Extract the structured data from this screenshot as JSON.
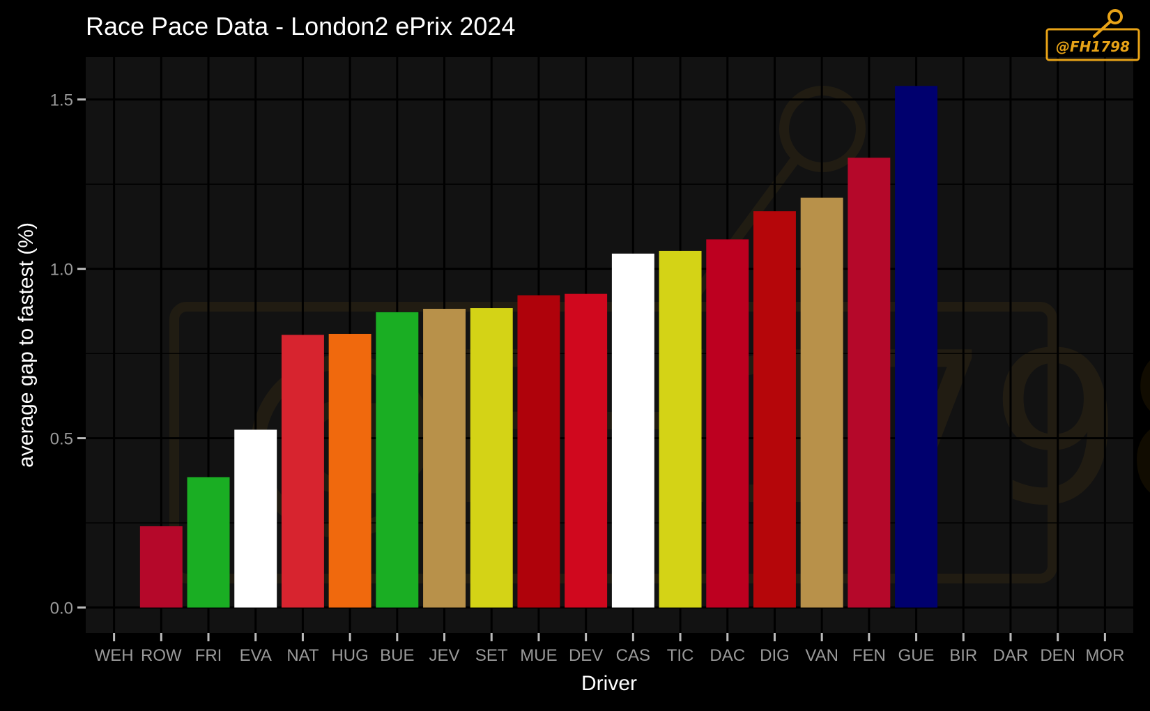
{
  "chart_data": {
    "type": "bar",
    "title": "Race Pace Data - London2 ePrix 2024",
    "xlabel": "Driver",
    "ylabel": "average gap to fastest (%)",
    "ylim": [
      -0.075,
      1.625
    ],
    "yticks": [
      0.0,
      0.5,
      1.0,
      1.5
    ],
    "ytick_labels": [
      "0.0",
      "0.5",
      "1.0",
      "1.5"
    ],
    "grid": true,
    "legend": "none",
    "categories": [
      "WEH",
      "ROW",
      "FRI",
      "EVA",
      "NAT",
      "HUG",
      "BUE",
      "JEV",
      "SET",
      "MUE",
      "DEV",
      "CAS",
      "TIC",
      "DAC",
      "DIG",
      "VAN",
      "FEN",
      "GUE",
      "BIR",
      "DAR",
      "DEN",
      "MOR"
    ],
    "values": [
      0.0,
      0.24,
      0.385,
      0.525,
      0.805,
      0.808,
      0.872,
      0.882,
      0.884,
      0.922,
      0.926,
      1.045,
      1.053,
      1.087,
      1.17,
      1.21,
      1.328,
      1.54,
      null,
      null,
      null,
      null
    ],
    "colors": [
      "#000000",
      "#B5082A",
      "#1AAE23",
      "#FFFFFF",
      "#D7242F",
      "#F0690D",
      "#1AAE23",
      "#B8914A",
      "#D4D316",
      "#AF020B",
      "#D0081E",
      "#FFFFFF",
      "#D4D316",
      "#BD0020",
      "#B5060A",
      "#B8914A",
      "#B5082A",
      "#00006E",
      null,
      null,
      null,
      null
    ]
  },
  "watermark": {
    "text": "@FH1798",
    "color": "#E8A317"
  },
  "theme": {
    "background": "#000000",
    "panel": "#121212",
    "grid": "#000000",
    "text": "#FFFFFF",
    "tick_text": "#9A9A9A"
  }
}
